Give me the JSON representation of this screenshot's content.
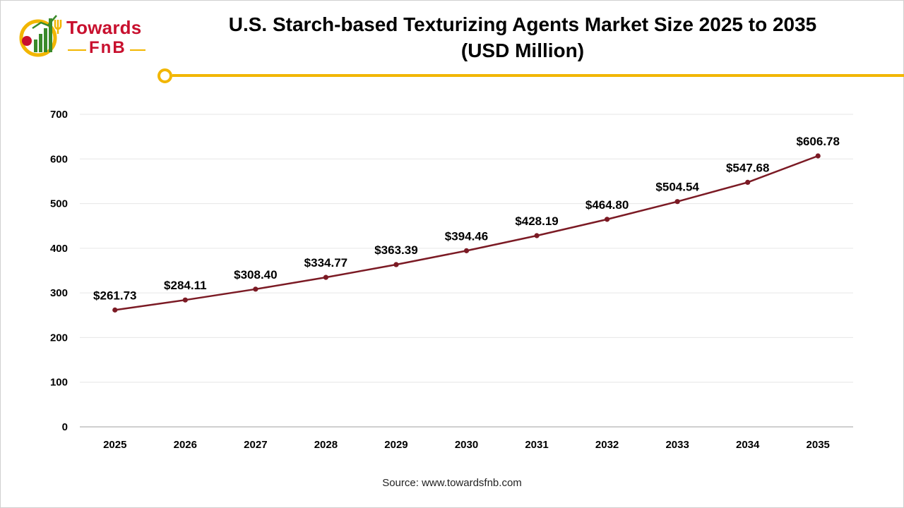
{
  "logo": {
    "word_1": "Towards",
    "word_2": "FnB",
    "colors": {
      "red": "#c8102e",
      "gold": "#f2b600",
      "green": "#3a8a2a"
    }
  },
  "header": {
    "title_line_1": "U.S. Starch-based Texturizing Agents Market Size 2025 to 2035",
    "title_line_2": "(USD Million)"
  },
  "chart_data": {
    "type": "line",
    "title": "U.S. Starch-based Texturizing Agents Market Size 2025 to 2035 (USD Million)",
    "xlabel": "",
    "ylabel": "",
    "categories": [
      "2025",
      "2026",
      "2027",
      "2028",
      "2029",
      "2030",
      "2031",
      "2032",
      "2033",
      "2034",
      "2035"
    ],
    "series": [
      {
        "values": [
          261.73,
          284.11,
          308.4,
          334.77,
          363.39,
          394.46,
          428.19,
          464.8,
          504.54,
          547.68,
          606.78
        ],
        "labels": [
          "$261.73",
          "$284.11",
          "$308.40",
          "$334.77",
          "$363.39",
          "$394.46",
          "$428.19",
          "$464.80",
          "$504.54",
          "$547.68",
          "$606.78"
        ],
        "color": "#7b1a24"
      }
    ],
    "ylim": [
      0,
      700
    ],
    "yticks": [
      0,
      100,
      200,
      300,
      400,
      500,
      600,
      700
    ],
    "grid": true,
    "legend": "none"
  },
  "footer": {
    "source": "Source: www.towardsfnb.com"
  },
  "colors": {
    "accent": "#f2b600",
    "line": "#7b1a24",
    "grid": "#e6e6e6",
    "axis": "#bfbfbf"
  }
}
